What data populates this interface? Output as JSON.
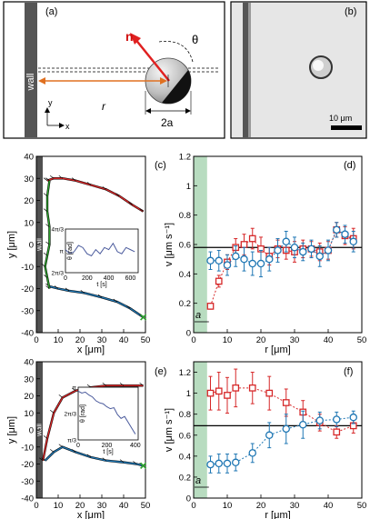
{
  "panels": {
    "a": "(a)",
    "b": "(b)",
    "c": "(c)",
    "d": "(d)",
    "e": "(e)",
    "f": "(f)"
  },
  "schematic": {
    "wall_label": "wall",
    "n_label": "n",
    "theta_label": "θ",
    "r_label": "r",
    "diameter_label": "2a",
    "axis_y": "y",
    "axis_x": "x"
  },
  "micrograph": {
    "scalebar_label": "10 μm"
  },
  "chart_data": [
    {
      "id": "c",
      "type": "line",
      "xlabel": "x [μm]",
      "ylabel": "y [μm]",
      "xlim": [
        0,
        50
      ],
      "ylim": [
        -40,
        40
      ],
      "xticks": [
        0,
        10,
        20,
        30,
        40,
        50
      ],
      "yticks": [
        -40,
        -30,
        -20,
        -10,
        0,
        10,
        20,
        30,
        40
      ],
      "wall_label": "wall",
      "series": [
        {
          "color": "#d62728",
          "x": [
            5,
            8,
            12,
            18,
            25,
            32,
            38,
            44,
            49
          ],
          "y": [
            29,
            30,
            30,
            29,
            27,
            25,
            22,
            18,
            15
          ]
        },
        {
          "color": "#1f77b4",
          "x": [
            6,
            10,
            15,
            22,
            30,
            37,
            43,
            49
          ],
          "y": [
            -19,
            -20,
            -21,
            -22,
            -24,
            -26,
            -29,
            -33
          ]
        },
        {
          "color": "#2ca02c",
          "x": [
            6,
            5,
            4,
            5,
            6,
            6,
            5,
            5,
            6
          ],
          "y": [
            -20,
            -15,
            -10,
            -5,
            0,
            8,
            15,
            22,
            29
          ]
        }
      ],
      "end_marker": {
        "x": 49,
        "y": -33
      },
      "inset": {
        "xlabel": "t [s]",
        "ylabel": "θ [rad]",
        "xticks": [
          0,
          200,
          400,
          600
        ],
        "yticks_labels": [
          "2π/3",
          "π",
          "4π/3"
        ],
        "ylim": [
          2.09,
          4.19
        ],
        "t": [
          0,
          40,
          80,
          120,
          160,
          200,
          240,
          280,
          320,
          360,
          400,
          440,
          480,
          520,
          560,
          600,
          640
        ],
        "theta": [
          3.2,
          3.0,
          3.1,
          3.4,
          3.3,
          3.0,
          2.9,
          3.2,
          3.0,
          3.3,
          3.2,
          3.5,
          3.1,
          3.0,
          3.3,
          3.2,
          3.1
        ]
      }
    },
    {
      "id": "d",
      "type": "scatter",
      "xlabel": "r [μm]",
      "ylabel": "v [μm s⁻¹]",
      "xlim": [
        0,
        50
      ],
      "ylim": [
        0,
        1.2
      ],
      "xticks": [
        0,
        10,
        20,
        30,
        40,
        50
      ],
      "yticks": [
        0,
        0.2,
        0.4,
        0.6,
        0.8,
        1,
        1.2
      ],
      "a_label": "a",
      "hline": 0.58,
      "band_xmax": 4,
      "x": [
        5,
        7.5,
        10,
        12.5,
        15,
        17.5,
        20,
        22.5,
        25,
        27.5,
        30,
        32.5,
        35,
        37.5,
        40,
        42.5,
        45,
        47.5
      ],
      "series": [
        {
          "color": "#d62728",
          "marker": "square",
          "y": [
            0.18,
            0.35,
            0.48,
            0.58,
            0.6,
            0.64,
            0.57,
            0.52,
            0.57,
            0.56,
            0.55,
            0.57,
            0.57,
            0.55,
            0.56,
            0.7,
            0.66,
            0.64
          ],
          "err": [
            0.02,
            0.04,
            0.05,
            0.06,
            0.07,
            0.07,
            0.08,
            0.06,
            0.06,
            0.06,
            0.07,
            0.06,
            0.05,
            0.06,
            0.06,
            0.05,
            0.06,
            0.07
          ]
        },
        {
          "color": "#1f77b4",
          "marker": "circle",
          "y": [
            0.49,
            0.49,
            0.46,
            0.52,
            0.5,
            0.47,
            0.47,
            0.5,
            0.56,
            0.62,
            0.58,
            0.55,
            0.57,
            0.52,
            0.56,
            0.7,
            0.67,
            0.62
          ],
          "err": [
            0.06,
            0.07,
            0.07,
            0.07,
            0.08,
            0.08,
            0.09,
            0.08,
            0.08,
            0.07,
            0.07,
            0.06,
            0.06,
            0.07,
            0.07,
            0.05,
            0.06,
            0.07
          ]
        }
      ]
    },
    {
      "id": "e",
      "type": "line",
      "xlabel": "x [μm]",
      "ylabel": "y [μm]",
      "xlim": [
        0,
        50
      ],
      "ylim": [
        -40,
        40
      ],
      "xticks": [
        0,
        10,
        20,
        30,
        40,
        50
      ],
      "yticks": [
        -40,
        -30,
        -20,
        -10,
        0,
        10,
        20,
        30,
        40
      ],
      "wall_label": "wall",
      "series": [
        {
          "color": "#d62728",
          "x": [
            3,
            5,
            8,
            12,
            18,
            25,
            32,
            40,
            49
          ],
          "y": [
            -18,
            -5,
            10,
            19,
            23,
            25,
            26,
            26,
            26
          ]
        },
        {
          "color": "#1f77b4",
          "x": [
            4,
            8,
            12,
            18,
            25,
            32,
            40,
            46,
            49
          ],
          "y": [
            -18,
            -13,
            -10,
            -13,
            -16,
            -18,
            -19,
            -20,
            -21
          ]
        }
      ],
      "end_marker": {
        "x": 49,
        "y": -21
      },
      "inset": {
        "xlabel": "t [s]",
        "ylabel": "θ [rad]",
        "xticks": [
          0,
          200,
          400
        ],
        "yticks_labels": [
          "π/3",
          "2π/3",
          "π"
        ],
        "ylim": [
          0.6,
          3.3
        ],
        "t": [
          0,
          25,
          50,
          75,
          100,
          125,
          150,
          175,
          200,
          225,
          250,
          275,
          300,
          325,
          350,
          375,
          400
        ],
        "theta": [
          3.1,
          3.0,
          3.05,
          2.9,
          2.8,
          2.6,
          2.5,
          2.45,
          2.3,
          2.2,
          2.25,
          1.9,
          1.7,
          1.8,
          1.5,
          1.2,
          0.9
        ]
      }
    },
    {
      "id": "f",
      "type": "scatter",
      "xlabel": "r [μm]",
      "ylabel": "v [μm s⁻¹]",
      "xlim": [
        0,
        50
      ],
      "ylim": [
        0,
        1.3
      ],
      "xticks": [
        0,
        10,
        20,
        30,
        40,
        50
      ],
      "yticks": [
        0,
        0.2,
        0.4,
        0.6,
        0.8,
        1,
        1.2
      ],
      "a_label": "a",
      "hline": 0.69,
      "band_xmax": 4,
      "x": [
        5,
        7.5,
        10,
        12.5,
        17.5,
        22.5,
        27.5,
        32.5,
        37.5,
        42.5,
        47.5
      ],
      "series": [
        {
          "color": "#d62728",
          "marker": "square",
          "y": [
            1.0,
            1.02,
            0.98,
            1.05,
            1.05,
            1.0,
            0.91,
            0.82,
            0.72,
            0.63,
            0.69
          ],
          "err": [
            0.16,
            0.18,
            0.17,
            0.18,
            0.15,
            0.16,
            0.13,
            0.11,
            0.08,
            0.06,
            0.07
          ]
        },
        {
          "color": "#1f77b4",
          "marker": "circle",
          "y": [
            0.32,
            0.33,
            0.33,
            0.34,
            0.43,
            0.6,
            0.66,
            0.7,
            0.74,
            0.75,
            0.77
          ],
          "err": [
            0.08,
            0.09,
            0.09,
            0.08,
            0.09,
            0.12,
            0.14,
            0.13,
            0.08,
            0.07,
            0.06
          ]
        }
      ]
    }
  ]
}
